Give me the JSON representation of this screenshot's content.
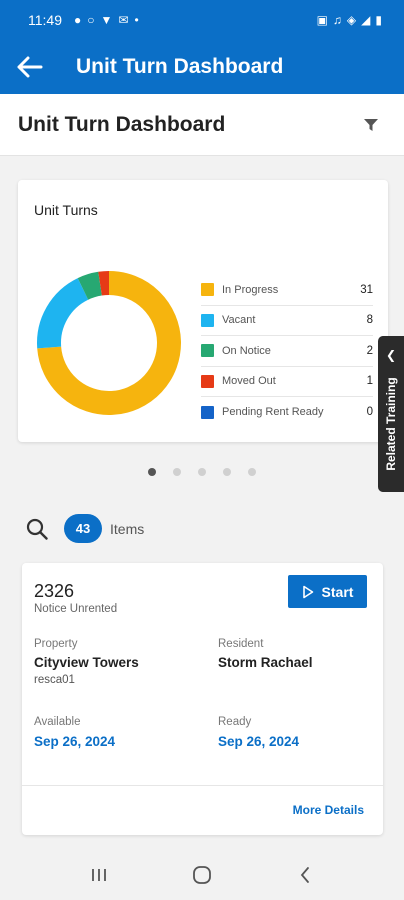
{
  "status_bar": {
    "time": "11:49"
  },
  "app_bar": {
    "title": "Unit Turn Dashboard"
  },
  "page": {
    "title": "Unit Turn Dashboard"
  },
  "colors": {
    "primary": "#0b6fc7",
    "in_progress": "#f6b40e",
    "vacant": "#1eb4f0",
    "on_notice": "#27a872",
    "moved_out": "#e63a16",
    "pending_rent_ready": "#1463c8"
  },
  "chart_data": {
    "type": "pie",
    "title": "Unit Turns",
    "categories": [
      "In Progress",
      "Vacant",
      "On Notice",
      "Moved Out",
      "Pending Rent Ready"
    ],
    "values": [
      31,
      8,
      2,
      1,
      0
    ],
    "value_labels": [
      "31",
      "8",
      "2",
      "1",
      "0"
    ],
    "colors": [
      "#f6b40e",
      "#1eb4f0",
      "#27a872",
      "#e63a16",
      "#1463c8"
    ],
    "donut": true,
    "legend_position": "right"
  },
  "related_training": {
    "label": "Related Training"
  },
  "pager": {
    "count": 5,
    "active": 0
  },
  "list": {
    "count": "43",
    "items_label": "Items"
  },
  "unit": {
    "number": "2326",
    "status": "Notice Unrented",
    "start_label": "Start",
    "property_label": "Property",
    "property_value": "Cityview Towers",
    "property_code": "resca01",
    "resident_label": "Resident",
    "resident_value": "Storm Rachael",
    "available_label": "Available",
    "available_value": "Sep 26, 2024",
    "ready_label": "Ready",
    "ready_value": "Sep 26, 2024",
    "more_details": "More Details"
  }
}
